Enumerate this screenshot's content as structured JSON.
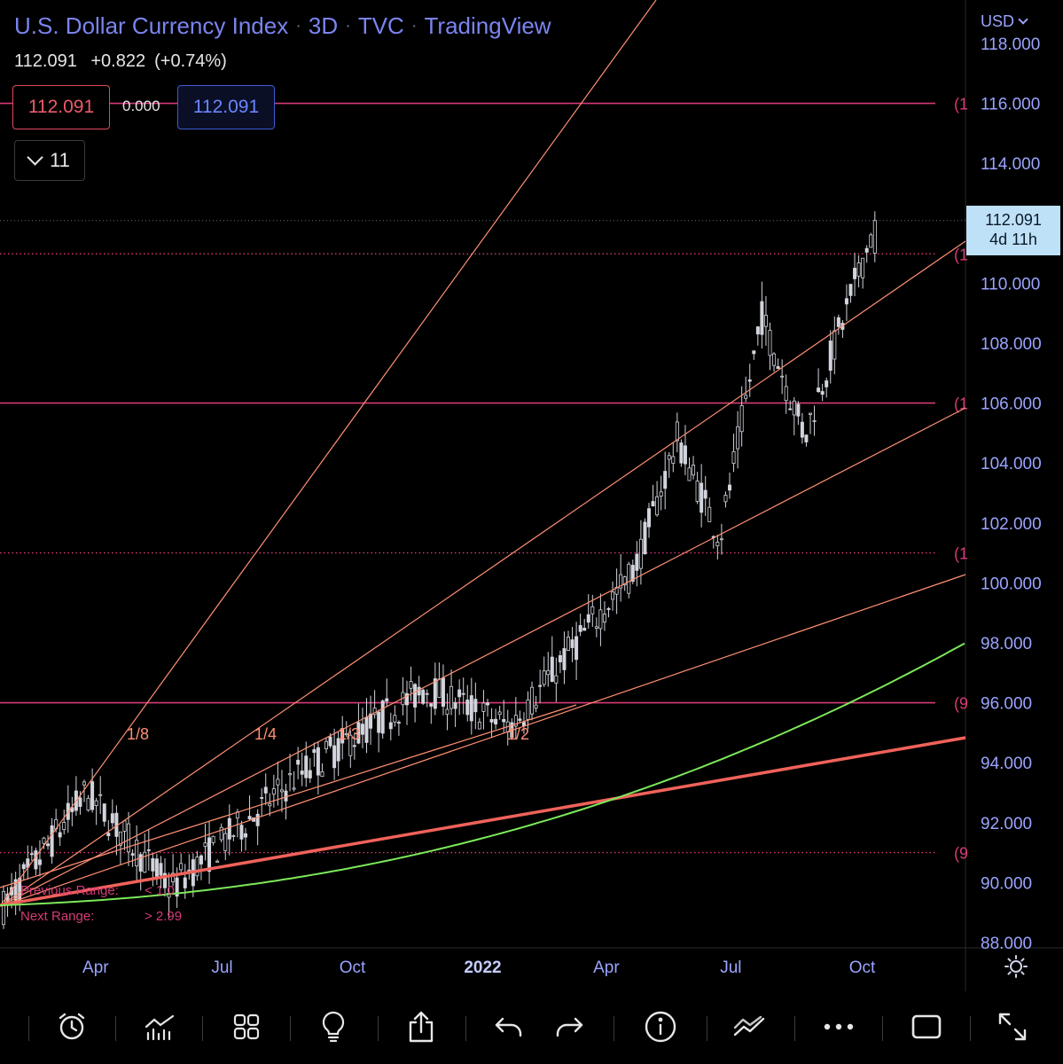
{
  "header": {
    "symbol_name": "U.S. Dollar Currency Index",
    "interval": "3D",
    "exchange": "TVC",
    "source": "TradingView",
    "last_price": "112.091",
    "change": "+0.822",
    "change_pct": "(+0.74%)",
    "bid": "112.091",
    "spread": "0.000",
    "ask": "112.091",
    "indicators_count": "11",
    "currency": "USD"
  },
  "price_badge": {
    "price": "112.091",
    "countdown": "4d 11h"
  },
  "chart_data": {
    "type": "candlestick",
    "title": "U.S. Dollar Currency Index · 3D · TVC · TradingView",
    "y_ticks": [
      88,
      90,
      92,
      94,
      96,
      98,
      100,
      102,
      104,
      106,
      108,
      110,
      114,
      116,
      118
    ],
    "y_tick_labels": [
      "88.000",
      "90.000",
      "92.000",
      "94.000",
      "96.000",
      "98.000",
      "100.000",
      "102.000",
      "104.000",
      "106.000",
      "108.000",
      "110.000",
      "114.000",
      "116.000",
      "118.000"
    ],
    "ylim": [
      87.85,
      118.2
    ],
    "x_tick_labels": [
      {
        "label": "Apr",
        "t": 0.099
      },
      {
        "label": "Jul",
        "t": 0.23
      },
      {
        "label": "Oct",
        "t": 0.365
      },
      {
        "label": "2022",
        "t": 0.5
      },
      {
        "label": "Apr",
        "t": 0.628
      },
      {
        "label": "Jul",
        "t": 0.757
      },
      {
        "label": "Oct",
        "t": 0.893
      }
    ],
    "key_points": [
      {
        "date": "2021-01",
        "value": 89.2
      },
      {
        "date": "2021-03",
        "value": 93.0
      },
      {
        "date": "2021-05",
        "value": 89.8
      },
      {
        "date": "2021-08",
        "value": 93.6
      },
      {
        "date": "2021-11",
        "value": 96.5
      },
      {
        "date": "2022-01",
        "value": 95.2
      },
      {
        "date": "2022-04",
        "value": 100.5
      },
      {
        "date": "2022-05",
        "value": 104.8
      },
      {
        "date": "2022-06",
        "value": 101.5
      },
      {
        "date": "2022-07",
        "value": 108.9
      },
      {
        "date": "2022-08",
        "value": 104.9
      },
      {
        "date": "2022-09",
        "value": 112.09
      }
    ],
    "horizontal_levels": [
      {
        "value": 116.0,
        "style": "solid",
        "color": "#d63a78"
      },
      {
        "value": 110.98,
        "style": "dotted",
        "color": "#d63a78"
      },
      {
        "value": 106.0,
        "style": "solid",
        "color": "#d63a78"
      },
      {
        "value": 101.0,
        "style": "dotted",
        "color": "#d63a78"
      },
      {
        "value": 96.0,
        "style": "solid",
        "color": "#d63a78"
      },
      {
        "value": 91.0,
        "style": "dotted",
        "color": "#d63a78"
      }
    ],
    "level_labels": [
      "(1",
      "(1",
      "(1",
      "(1",
      "(9",
      "(9"
    ],
    "fan_labels": [
      "1/8",
      "1/4",
      "1/3",
      "1/2"
    ],
    "info_rows": [
      {
        "label": "Previous Range:",
        "value": "< 1.0"
      },
      {
        "label": "Next Range:",
        "value": "> 2.99"
      }
    ],
    "colors": {
      "candle": "#d1d4dc",
      "fan": "#ff8f73",
      "level": "#d63a78",
      "curve": "#7ce85a",
      "trend": "#f0625a",
      "axis_text": "#9aa4ff"
    }
  },
  "toolbar": {
    "icons": [
      "alarm-icon",
      "indicators-icon",
      "templates-icon",
      "ideas-icon",
      "share-icon",
      "undo-icon",
      "redo-icon",
      "info-icon",
      "drawing-tools-icon",
      "more-icon",
      "rectangle-icon",
      "fullscreen-icon"
    ]
  }
}
